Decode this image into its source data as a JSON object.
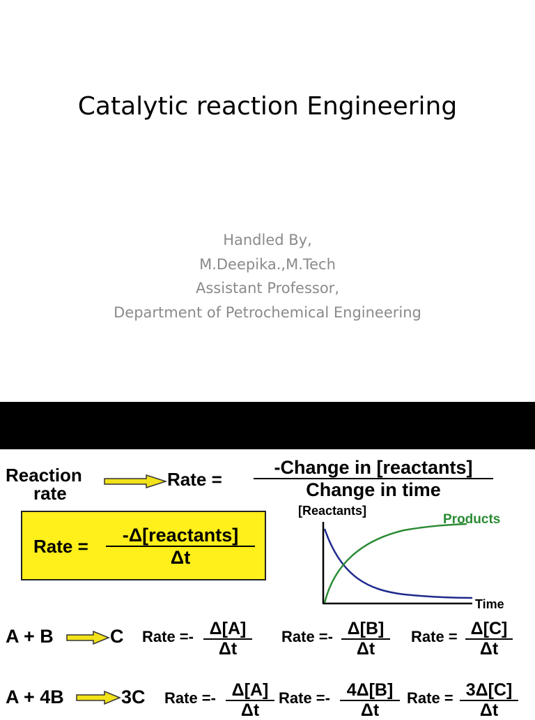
{
  "slide": {
    "title": "Catalytic reaction Engineering",
    "subtitle_lines": [
      "Handled By,",
      "M.Deepika.,M.Tech",
      "Assistant Professor,",
      "Department of Petrochemical Engineering"
    ]
  },
  "figure": {
    "reaction_rate_label_1": "Reaction",
    "reaction_rate_label_2": "rate",
    "rate_eq_label": "Rate =",
    "rate_numerator": "-Change in [reactants]",
    "rate_denominator": "Change in time",
    "box_rate_label": "Rate =",
    "box_numerator": "-Δ[reactants]",
    "box_denominator": "Δt",
    "graph": {
      "y_label": "[Reactants]",
      "x_label": "Time",
      "products_label": "Products",
      "reactant_color": "#1e2a8c",
      "product_color": "#2a8a34"
    },
    "eq1": {
      "reaction": "A + B",
      "product": "C",
      "rate_a_label": "Rate =-",
      "rate_a_num": "Δ[A]",
      "rate_a_den": "Δt",
      "rate_b_label": "Rate =-",
      "rate_b_num": "Δ[B]",
      "rate_b_den": "Δt",
      "rate_c_label": "Rate =",
      "rate_c_num": "Δ[C]",
      "rate_c_den": "Δt"
    },
    "eq2": {
      "reaction": "A + 4B",
      "product": "3C",
      "rate_a_label": "Rate =-",
      "rate_a_num": "Δ[A]",
      "rate_a_den": "Δt",
      "rate_b_label": "Rate =-",
      "rate_b_num": "4Δ[B]",
      "rate_b_den": "Δt",
      "rate_c_label": "Rate =",
      "rate_c_num": "3Δ[C]",
      "rate_c_den": "Δt"
    },
    "arrow_color": "#f2e21a"
  }
}
